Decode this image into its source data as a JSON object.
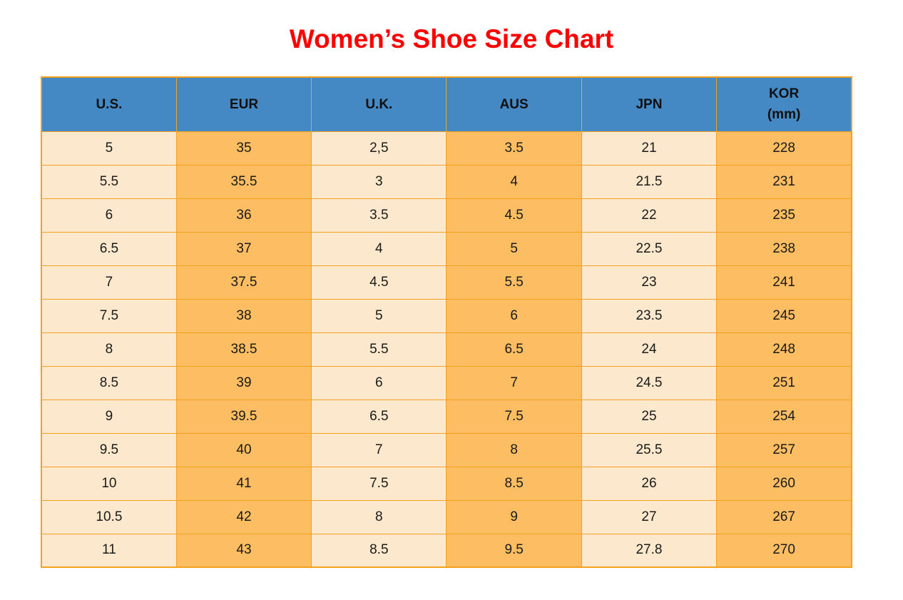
{
  "page": {
    "title": "Women’s Shoe Size Chart"
  },
  "colors": {
    "title_red": "#ff0000",
    "header_blue": "#4589c4",
    "cell_light_cream": "#fce9cd",
    "cell_dark_orange": "#fcbd63",
    "grid_border_orange": "#f5a01e",
    "text": "#1a1a1a"
  },
  "chart_data": {
    "type": "table",
    "title": "Women’s Shoe Size Chart",
    "columns": [
      {
        "label": "U.S.",
        "sublabel": ""
      },
      {
        "label": "EUR",
        "sublabel": ""
      },
      {
        "label": "U.K.",
        "sublabel": ""
      },
      {
        "label": "AUS",
        "sublabel": ""
      },
      {
        "label": "JPN",
        "sublabel": ""
      },
      {
        "label": "KOR",
        "sublabel": "(mm)"
      }
    ],
    "rows": [
      [
        "5",
        "35",
        "2,5",
        "3.5",
        "21",
        "228"
      ],
      [
        "5.5",
        "35.5",
        "3",
        "4",
        "21.5",
        "231"
      ],
      [
        "6",
        "36",
        "3.5",
        "4.5",
        "22",
        "235"
      ],
      [
        "6.5",
        "37",
        "4",
        "5",
        "22.5",
        "238"
      ],
      [
        "7",
        "37.5",
        "4.5",
        "5.5",
        "23",
        "241"
      ],
      [
        "7.5",
        "38",
        "5",
        "6",
        "23.5",
        "245"
      ],
      [
        "8",
        "38.5",
        "5.5",
        "6.5",
        "24",
        "248"
      ],
      [
        "8.5",
        "39",
        "6",
        "7",
        "24.5",
        "251"
      ],
      [
        "9",
        "39.5",
        "6.5",
        "7.5",
        "25",
        "254"
      ],
      [
        "9.5",
        "40",
        "7",
        "8",
        "25.5",
        "257"
      ],
      [
        "10",
        "41",
        "7.5",
        "8.5",
        "26",
        "260"
      ],
      [
        "10.5",
        "42",
        "8",
        "9",
        "27",
        "267"
      ],
      [
        "11",
        "43",
        "8.5",
        "9.5",
        "27.8",
        "270"
      ]
    ],
    "layout": {
      "column_fill_pattern": [
        "light",
        "dark",
        "light",
        "dark",
        "light",
        "dark"
      ],
      "header_text_align": "center",
      "cell_text_align": "center"
    }
  }
}
